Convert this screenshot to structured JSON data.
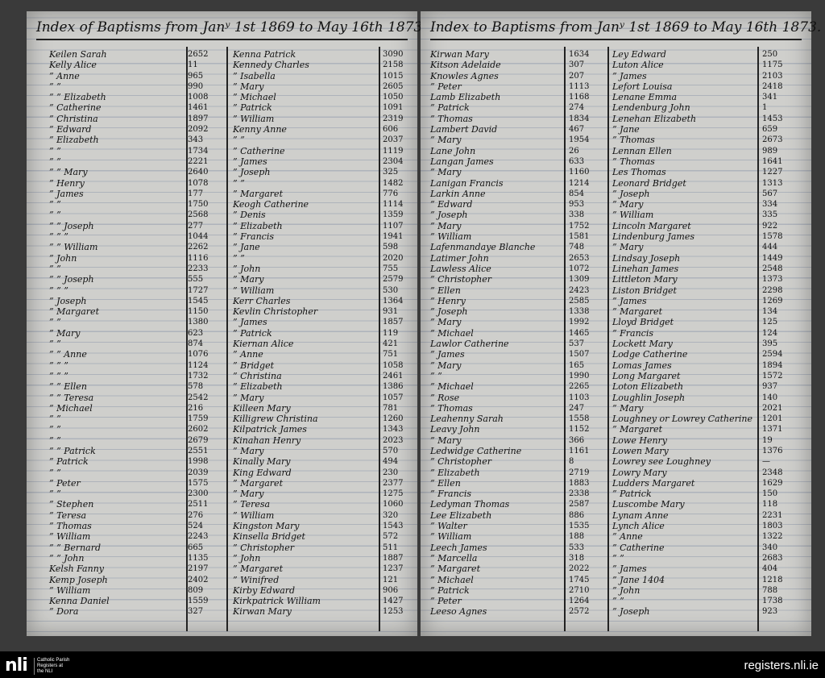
{
  "pages": [
    {
      "title": "Index of Baptisms from Janʸ 1st 1869 to May 16th 1873.",
      "columns": [
        {
          "rows": [
            [
              "Keilen Sarah",
              "2652"
            ],
            [
              "Kelly Alice",
              "11"
            ],
            [
              "” Anne",
              "965"
            ],
            [
              "” ”",
              "990"
            ],
            [
              "” ” Elizabeth",
              "1008"
            ],
            [
              "” Catherine",
              "1461"
            ],
            [
              "” Christina",
              "1897"
            ],
            [
              "” Edward",
              "2092"
            ],
            [
              "” Elizabeth",
              "343"
            ],
            [
              "” ”",
              "1734"
            ],
            [
              "” ”",
              "2221"
            ],
            [
              "” ” Mary",
              "2640"
            ],
            [
              "” Henry",
              "1078"
            ],
            [
              "” James",
              "177"
            ],
            [
              "” ”",
              "1750"
            ],
            [
              "” ”",
              "2568"
            ],
            [
              "” ” Joseph",
              "277"
            ],
            [
              "” ” ”",
              "1044"
            ],
            [
              "” ” William",
              "2262"
            ],
            [
              "” John",
              "1116"
            ],
            [
              "” ”",
              "2233"
            ],
            [
              "” ” Joseph",
              "555"
            ],
            [
              "” ” ”",
              "1727"
            ],
            [
              "” Joseph",
              "1545"
            ],
            [
              "” Margaret",
              "1150"
            ],
            [
              "” ”",
              "1380"
            ],
            [
              "” Mary",
              "623"
            ],
            [
              "” ”",
              "874"
            ],
            [
              "” ” Anne",
              "1076"
            ],
            [
              "” ” ”",
              "1124"
            ],
            [
              "” ” ”",
              "1732"
            ],
            [
              "” ” Ellen",
              "578"
            ],
            [
              "” ” Teresa",
              "2542"
            ],
            [
              "” Michael",
              "216"
            ],
            [
              "” ”",
              "1759"
            ],
            [
              "” ”",
              "2602"
            ],
            [
              "” ”",
              "2679"
            ],
            [
              "” ” Patrick",
              "2551"
            ],
            [
              "” Patrick",
              "1998"
            ],
            [
              "” ”",
              "2039"
            ],
            [
              "” Peter",
              "1575"
            ],
            [
              "” ”",
              "2300"
            ],
            [
              "” Stephen",
              "2511"
            ],
            [
              "” Teresa",
              "276"
            ],
            [
              "” Thomas",
              "524"
            ],
            [
              "” William",
              "2243"
            ],
            [
              "” ” Bernard",
              "665"
            ],
            [
              "” ” John",
              "1135"
            ],
            [
              "Kelsh Fanny",
              "2197"
            ],
            [
              "Kemp Joseph",
              "2402"
            ],
            [
              "” William",
              "809"
            ],
            [
              "Kenna Daniel",
              "1559"
            ],
            [
              "” Dora",
              "327"
            ]
          ]
        },
        {
          "rows": [
            [
              "Kenna Patrick",
              "3090"
            ],
            [
              "Kennedy Charles",
              "2158"
            ],
            [
              "” Isabella",
              "1015"
            ],
            [
              "” Mary",
              "2605"
            ],
            [
              "” Michael",
              "1050"
            ],
            [
              "” Patrick",
              "1091"
            ],
            [
              "” William",
              "2319"
            ],
            [
              "Kenny Anne",
              "606"
            ],
            [
              "” ”",
              "2037"
            ],
            [
              "” Catherine",
              "1119"
            ],
            [
              "” James",
              "2304"
            ],
            [
              "” Joseph",
              "325"
            ],
            [
              "” ”",
              "1482"
            ],
            [
              "” Margaret",
              "776"
            ],
            [
              "Keogh Catherine",
              "1114"
            ],
            [
              "” Denis",
              "1359"
            ],
            [
              "” Elizabeth",
              "1107"
            ],
            [
              "” Francis",
              "1941"
            ],
            [
              "” Jane",
              "598"
            ],
            [
              "” ”",
              "2020"
            ],
            [
              "” John",
              "755"
            ],
            [
              "” Mary",
              "2579"
            ],
            [
              "” William",
              "530"
            ],
            [
              "Kerr Charles",
              "1364"
            ],
            [
              "Kevlin Christopher",
              "931"
            ],
            [
              "” James",
              "1857"
            ],
            [
              "” Patrick",
              "119"
            ],
            [
              "Kiernan Alice",
              "421"
            ],
            [
              "” Anne",
              "751"
            ],
            [
              "” Bridget",
              "1058"
            ],
            [
              "” Christina",
              "2461"
            ],
            [
              "” Elizabeth",
              "1386"
            ],
            [
              "” Mary",
              "1057"
            ],
            [
              "Killeen Mary",
              "781"
            ],
            [
              "Killigrew Christina",
              "1260"
            ],
            [
              "Kilpatrick James",
              "1343"
            ],
            [
              "Kinahan Henry",
              "2023"
            ],
            [
              "” Mary",
              "570"
            ],
            [
              "Kinally Mary",
              "494"
            ],
            [
              "King Edward",
              "230"
            ],
            [
              "” Margaret",
              "2377"
            ],
            [
              "” Mary",
              "1275"
            ],
            [
              "” Teresa",
              "1060"
            ],
            [
              "” William",
              "320"
            ],
            [
              "Kingston Mary",
              "1543"
            ],
            [
              "Kinsella Bridget",
              "572"
            ],
            [
              "” Christopher",
              "511"
            ],
            [
              "” John",
              "1887"
            ],
            [
              "” Margaret",
              "1237"
            ],
            [
              "” Winifred",
              "121"
            ],
            [
              "Kirby Edward",
              "906"
            ],
            [
              "Kirkpatrick William",
              "1427"
            ],
            [
              "Kirwan Mary",
              "1253"
            ]
          ]
        }
      ]
    },
    {
      "title": "Index to Baptisms from Janʸ 1st 1869 to May 16th 1873.",
      "columns": [
        {
          "rows": [
            [
              "Kirwan Mary",
              "1634"
            ],
            [
              "Kitson Adelaide",
              "307"
            ],
            [
              "Knowles Agnes",
              "207"
            ],
            [
              "” Peter",
              "1113"
            ],
            [
              "Lamb Elizabeth",
              "1168"
            ],
            [
              "” Patrick",
              "274"
            ],
            [
              "” Thomas",
              "1834"
            ],
            [
              "Lambert David",
              "467"
            ],
            [
              "” Mary",
              "1954"
            ],
            [
              "Lane John",
              "26"
            ],
            [
              "Langan James",
              "633"
            ],
            [
              "” Mary",
              "1160"
            ],
            [
              "Lanigan Francis",
              "1214"
            ],
            [
              "Larkin Anne",
              "854"
            ],
            [
              "” Edward",
              "953"
            ],
            [
              "” Joseph",
              "338"
            ],
            [
              "” Mary",
              "1752"
            ],
            [
              "” William",
              "1581"
            ],
            [
              "Lafenmandaye Blanche",
              "748"
            ],
            [
              "Latimer John",
              "2653"
            ],
            [
              "Lawless Alice",
              "1072"
            ],
            [
              "” Christopher",
              "1309"
            ],
            [
              "” Ellen",
              "2423"
            ],
            [
              "” Henry",
              "2585"
            ],
            [
              "” Joseph",
              "1338"
            ],
            [
              "” Mary",
              "1992"
            ],
            [
              "” Michael",
              "1465"
            ],
            [
              "Lawlor Catherine",
              "537"
            ],
            [
              "” James",
              "1507"
            ],
            [
              "” Mary",
              "165"
            ],
            [
              "” ”",
              "1990"
            ],
            [
              "” Michael",
              "2265"
            ],
            [
              "” Rose",
              "1103"
            ],
            [
              "” Thomas",
              "247"
            ],
            [
              "Leahenny Sarah",
              "1558"
            ],
            [
              "Leavy John",
              "1152"
            ],
            [
              "” Mary",
              "366"
            ],
            [
              "Ledwidge Catherine",
              "1161"
            ],
            [
              "” Christopher",
              "8"
            ],
            [
              "” Elizabeth",
              "2719"
            ],
            [
              "” Ellen",
              "1883"
            ],
            [
              "” Francis",
              "2338"
            ],
            [
              "Ledyman Thomas",
              "2587"
            ],
            [
              "Lee Elizabeth",
              "886"
            ],
            [
              "” Walter",
              "1535"
            ],
            [
              "” William",
              "188"
            ],
            [
              "Leech James",
              "533"
            ],
            [
              "” Marcella",
              "318"
            ],
            [
              "” Margaret",
              "2022"
            ],
            [
              "” Michael",
              "1745"
            ],
            [
              "” Patrick",
              "2710"
            ],
            [
              "” Peter",
              "1264"
            ],
            [
              "Leeso Agnes",
              "2572"
            ]
          ]
        },
        {
          "rows": [
            [
              "Ley Edward",
              "250"
            ],
            [
              "Luton Alice",
              "1175"
            ],
            [
              "” James",
              "2103"
            ],
            [
              "Lefort Louisa",
              "2418"
            ],
            [
              "Lenane Emma",
              "341"
            ],
            [
              "Lendenburg John",
              "1"
            ],
            [
              "Lenehan Elizabeth",
              "1453"
            ],
            [
              "” Jane",
              "659"
            ],
            [
              "” Thomas",
              "2673"
            ],
            [
              "Lennan Ellen",
              "989"
            ],
            [
              "” Thomas",
              "1641"
            ],
            [
              "Les Thomas",
              "1227"
            ],
            [
              "Leonard Bridget",
              "1313"
            ],
            [
              "” Joseph",
              "567"
            ],
            [
              "” Mary",
              "334"
            ],
            [
              "” William",
              "335"
            ],
            [
              "Lincoln Margaret",
              "922"
            ],
            [
              "Lindenburg James",
              "1578"
            ],
            [
              "” Mary",
              "444"
            ],
            [
              "Lindsay Joseph",
              "1449"
            ],
            [
              "Linehan James",
              "2548"
            ],
            [
              "Littleton Mary",
              "1373"
            ],
            [
              "Liston Bridget",
              "2298"
            ],
            [
              "” James",
              "1269"
            ],
            [
              "” Margaret",
              "134"
            ],
            [
              "Lloyd Bridget",
              "125"
            ],
            [
              "” Francis",
              "124"
            ],
            [
              "Lockett Mary",
              "395"
            ],
            [
              "Lodge Catherine",
              "2594"
            ],
            [
              "Lomas James",
              "1894"
            ],
            [
              "Long Margaret",
              "1572"
            ],
            [
              "Loton Elizabeth",
              "937"
            ],
            [
              "Loughlin Joseph",
              "140"
            ],
            [
              "” Mary",
              "2021"
            ],
            [
              "Loughney or Lowrey Catherine",
              "1201"
            ],
            [
              "” Margaret",
              "1371"
            ],
            [
              "Lowe Henry",
              "19"
            ],
            [
              "Lowen Mary",
              "1376"
            ],
            [
              "Lowrey see Loughney",
              "—"
            ],
            [
              "Lowry Mary",
              "2348"
            ],
            [
              "Ludders Margaret",
              "1629"
            ],
            [
              "” Patrick",
              "150"
            ],
            [
              "Luscombe Mary",
              "118"
            ],
            [
              "Lynam Anne",
              "2231"
            ],
            [
              "Lynch Alice",
              "1803"
            ],
            [
              "” Anne",
              "1322"
            ],
            [
              "” Catherine",
              "340"
            ],
            [
              "” ”",
              "2683"
            ],
            [
              "” James",
              "404"
            ],
            [
              "” Jane   1404",
              "1218"
            ],
            [
              "” John",
              "788"
            ],
            [
              "” ”",
              "1738"
            ],
            [
              "” Joseph",
              "923"
            ]
          ]
        }
      ]
    }
  ],
  "footer": {
    "logo_text": "nli",
    "org_lines": [
      "Catholic Parish",
      "Registers at",
      "the NLI"
    ],
    "site": "registers.nli.ie"
  }
}
